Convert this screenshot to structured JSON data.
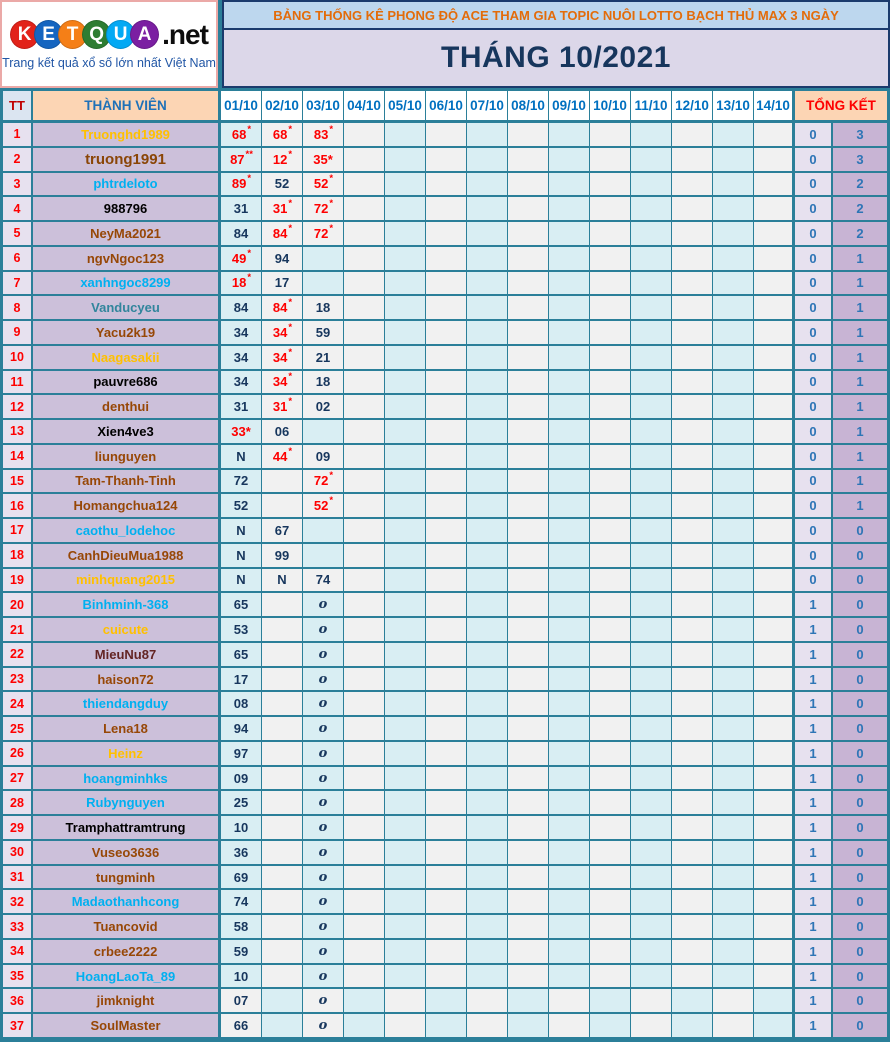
{
  "logo": {
    "letters": [
      {
        "ch": "K",
        "color": "#e2231a"
      },
      {
        "ch": "E",
        "color": "#1565c0"
      },
      {
        "ch": "T",
        "color": "#f57f17"
      },
      {
        "ch": "Q",
        "color": "#2e7d32"
      },
      {
        "ch": "U",
        "color": "#03a9f4"
      },
      {
        "ch": "A",
        "color": "#7b1fa2"
      }
    ],
    "suffix": ".net",
    "tagline": "Trang kết quả xổ số lớn nhất Việt Nam"
  },
  "banner": {
    "title": "BẢNG THỐNG KÊ PHONG ĐỘ ACE THAM GIA TOPIC NUÔI LOTTO BẠCH THỦ MAX 3 NGÀY",
    "month": "THÁNG 10/2021"
  },
  "table": {
    "headers": {
      "tt": "TT",
      "member": "THÀNH VIÊN",
      "dates": [
        "01/10",
        "02/10",
        "03/10",
        "04/10",
        "05/10",
        "06/10",
        "07/10",
        "08/10",
        "09/10",
        "10/10",
        "11/10",
        "12/10",
        "13/10",
        "14/10"
      ],
      "total": "TỔNG KẾT"
    },
    "rows": [
      {
        "tt": "1",
        "name": "Truonghd1989",
        "color": "orange",
        "d": [
          {
            "v": "68",
            "star": "*"
          },
          {
            "v": "68",
            "star": "*"
          },
          {
            "v": "83",
            "star": "*"
          }
        ],
        "t1": "0",
        "t2": "3"
      },
      {
        "tt": "2",
        "name": "truong1991",
        "color": "darkbrown",
        "big": true,
        "d": [
          {
            "v": "87",
            "star": "**"
          },
          {
            "v": "12",
            "star": "*"
          },
          {
            "v": "35",
            "istar": "*"
          }
        ],
        "t1": "0",
        "t2": "3"
      },
      {
        "tt": "3",
        "name": "phtrdeloto",
        "color": "cyan",
        "d": [
          {
            "v": "89",
            "star": "*"
          },
          "52",
          {
            "v": "52",
            "star": "*"
          }
        ],
        "t1": "0",
        "t2": "2"
      },
      {
        "tt": "4",
        "name": "988796",
        "color": "black",
        "d": [
          "31",
          {
            "v": "31",
            "star": "*"
          },
          {
            "v": "72",
            "star": "*"
          }
        ],
        "t1": "0",
        "t2": "2"
      },
      {
        "tt": "5",
        "name": "NeyMa2021",
        "color": "brown",
        "d": [
          "84",
          {
            "v": "84",
            "star": "*"
          },
          {
            "v": "72",
            "star": "*"
          }
        ],
        "t1": "0",
        "t2": "2"
      },
      {
        "tt": "6",
        "name": "ngvNgoc123",
        "color": "brown",
        "d": [
          {
            "v": "49",
            "star": "*"
          },
          "94",
          ""
        ],
        "t1": "0",
        "t2": "1"
      },
      {
        "tt": "7",
        "name": "xanhngoc8299",
        "color": "cyan",
        "d": [
          {
            "v": "18",
            "star": "*"
          },
          "17",
          ""
        ],
        "t1": "0",
        "t2": "1"
      },
      {
        "tt": "8",
        "name": "Vanducyeu",
        "color": "teal",
        "d": [
          "84",
          {
            "v": "84",
            "star": "*"
          },
          "18"
        ],
        "t1": "0",
        "t2": "1"
      },
      {
        "tt": "9",
        "name": "Yacu2k19",
        "color": "brown",
        "d": [
          "34",
          {
            "v": "34",
            "star": "*"
          },
          "59"
        ],
        "t1": "0",
        "t2": "1"
      },
      {
        "tt": "10",
        "name": "Naagasakii",
        "color": "orange",
        "d": [
          "34",
          {
            "v": "34",
            "star": "*"
          },
          "21"
        ],
        "t1": "0",
        "t2": "1"
      },
      {
        "tt": "11",
        "name": "pauvre686",
        "color": "black",
        "d": [
          "34",
          {
            "v": "34",
            "star": "*"
          },
          "18"
        ],
        "t1": "0",
        "t2": "1"
      },
      {
        "tt": "12",
        "name": "denthui",
        "color": "brown",
        "d": [
          "31",
          {
            "v": "31",
            "star": "*"
          },
          "02"
        ],
        "t1": "0",
        "t2": "1"
      },
      {
        "tt": "13",
        "name": "Xien4ve3",
        "color": "black",
        "d": [
          {
            "v": "33",
            "istar": "*"
          },
          "06",
          ""
        ],
        "t1": "0",
        "t2": "1"
      },
      {
        "tt": "14",
        "name": "liunguyen",
        "color": "brown",
        "d": [
          "N",
          {
            "v": "44",
            "star": "*"
          },
          "09"
        ],
        "t1": "0",
        "t2": "1"
      },
      {
        "tt": "15",
        "name": "Tam-Thanh-Tinh",
        "color": "brown",
        "d": [
          "72",
          "",
          {
            "v": "72",
            "star": "*"
          }
        ],
        "t1": "0",
        "t2": "1"
      },
      {
        "tt": "16",
        "name": "Homangchua124",
        "color": "brown",
        "d": [
          "52",
          "",
          {
            "v": "52",
            "star": "*"
          }
        ],
        "t1": "0",
        "t2": "1"
      },
      {
        "tt": "17",
        "name": "caothu_lodehoc",
        "color": "cyan",
        "d": [
          "N",
          "67",
          ""
        ],
        "t1": "0",
        "t2": "0"
      },
      {
        "tt": "18",
        "name": "CanhDieuMua1988",
        "color": "brown",
        "d": [
          "N",
          "99",
          ""
        ],
        "t1": "0",
        "t2": "0"
      },
      {
        "tt": "19",
        "name": "minhquang2015",
        "color": "orange",
        "d": [
          "N",
          "N",
          "74"
        ],
        "t1": "0",
        "t2": "0"
      },
      {
        "tt": "20",
        "name": "Binhminh-368",
        "color": "cyan",
        "d": [
          "65",
          "",
          "o"
        ],
        "t1": "1",
        "t2": "0"
      },
      {
        "tt": "21",
        "name": "cuicute",
        "color": "orange",
        "d": [
          "53",
          "",
          "o"
        ],
        "t1": "1",
        "t2": "0"
      },
      {
        "tt": "22",
        "name": "MieuNu87",
        "color": "darkred",
        "d": [
          "65",
          "",
          "o"
        ],
        "t1": "1",
        "t2": "0"
      },
      {
        "tt": "23",
        "name": "haison72",
        "color": "brown",
        "d": [
          "17",
          "",
          "o"
        ],
        "t1": "1",
        "t2": "0"
      },
      {
        "tt": "24",
        "name": "thiendangduy",
        "color": "cyan",
        "d": [
          "08",
          "",
          "o"
        ],
        "t1": "1",
        "t2": "0"
      },
      {
        "tt": "25",
        "name": "Lena18",
        "color": "brown",
        "d": [
          "94",
          "",
          "o"
        ],
        "t1": "1",
        "t2": "0"
      },
      {
        "tt": "26",
        "name": "Heinz",
        "color": "orange",
        "d": [
          "97",
          "",
          "o"
        ],
        "t1": "1",
        "t2": "0"
      },
      {
        "tt": "27",
        "name": "hoangminhks",
        "color": "cyan",
        "d": [
          "09",
          "",
          "o"
        ],
        "t1": "1",
        "t2": "0"
      },
      {
        "tt": "28",
        "name": "Rubynguyen",
        "color": "cyan",
        "d": [
          "25",
          "",
          "o"
        ],
        "t1": "1",
        "t2": "0"
      },
      {
        "tt": "29",
        "name": "Tramphattramtrung",
        "color": "black",
        "d": [
          "10",
          "",
          "o"
        ],
        "t1": "1",
        "t2": "0"
      },
      {
        "tt": "30",
        "name": "Vuseo3636",
        "color": "brown",
        "d": [
          "36",
          "",
          "o"
        ],
        "t1": "1",
        "t2": "0"
      },
      {
        "tt": "31",
        "name": "tungminh",
        "color": "brown",
        "d": [
          "69",
          "",
          "o"
        ],
        "t1": "1",
        "t2": "0"
      },
      {
        "tt": "32",
        "name": "Madaothanhcong",
        "color": "cyan",
        "d": [
          "74",
          "",
          "o"
        ],
        "t1": "1",
        "t2": "0"
      },
      {
        "tt": "33",
        "name": "Tuancovid",
        "color": "brown",
        "d": [
          "58",
          "",
          "o"
        ],
        "t1": "1",
        "t2": "0"
      },
      {
        "tt": "34",
        "name": "crbee2222",
        "color": "brown",
        "d": [
          "59",
          "",
          "o"
        ],
        "t1": "1",
        "t2": "0"
      },
      {
        "tt": "35",
        "name": "HoangLaoTa_89",
        "color": "cyan",
        "d": [
          "10",
          "",
          "o"
        ],
        "t1": "1",
        "t2": "0"
      },
      {
        "tt": "36",
        "name": "jimknight",
        "color": "brown",
        "d": [
          "07",
          "",
          "o"
        ],
        "t1": "1",
        "t2": "0"
      },
      {
        "tt": "37",
        "name": "SoulMaster",
        "color": "brown",
        "d": [
          "66",
          "",
          "o"
        ],
        "t1": "1",
        "t2": "0"
      }
    ]
  },
  "colors": {
    "grid_border_teal": "#2b7f99",
    "cell_cyan": "#d9eef3",
    "cell_light": "#f1f1f1",
    "member_cell_bg": "#ccc0da",
    "tt_cell_bg": "#e7e1ef",
    "total_wide_bg": "#c8b4d4",
    "header_peach": "#fcd5b4",
    "banner_blue_bg": "#bdd7ee",
    "banner_lavender_bg": "#dcd7e9",
    "value_navy": "#17365d",
    "value_red": "#fe0000",
    "total_blue": "#2e75b6",
    "banner_orange_text": "#e36c0a"
  }
}
